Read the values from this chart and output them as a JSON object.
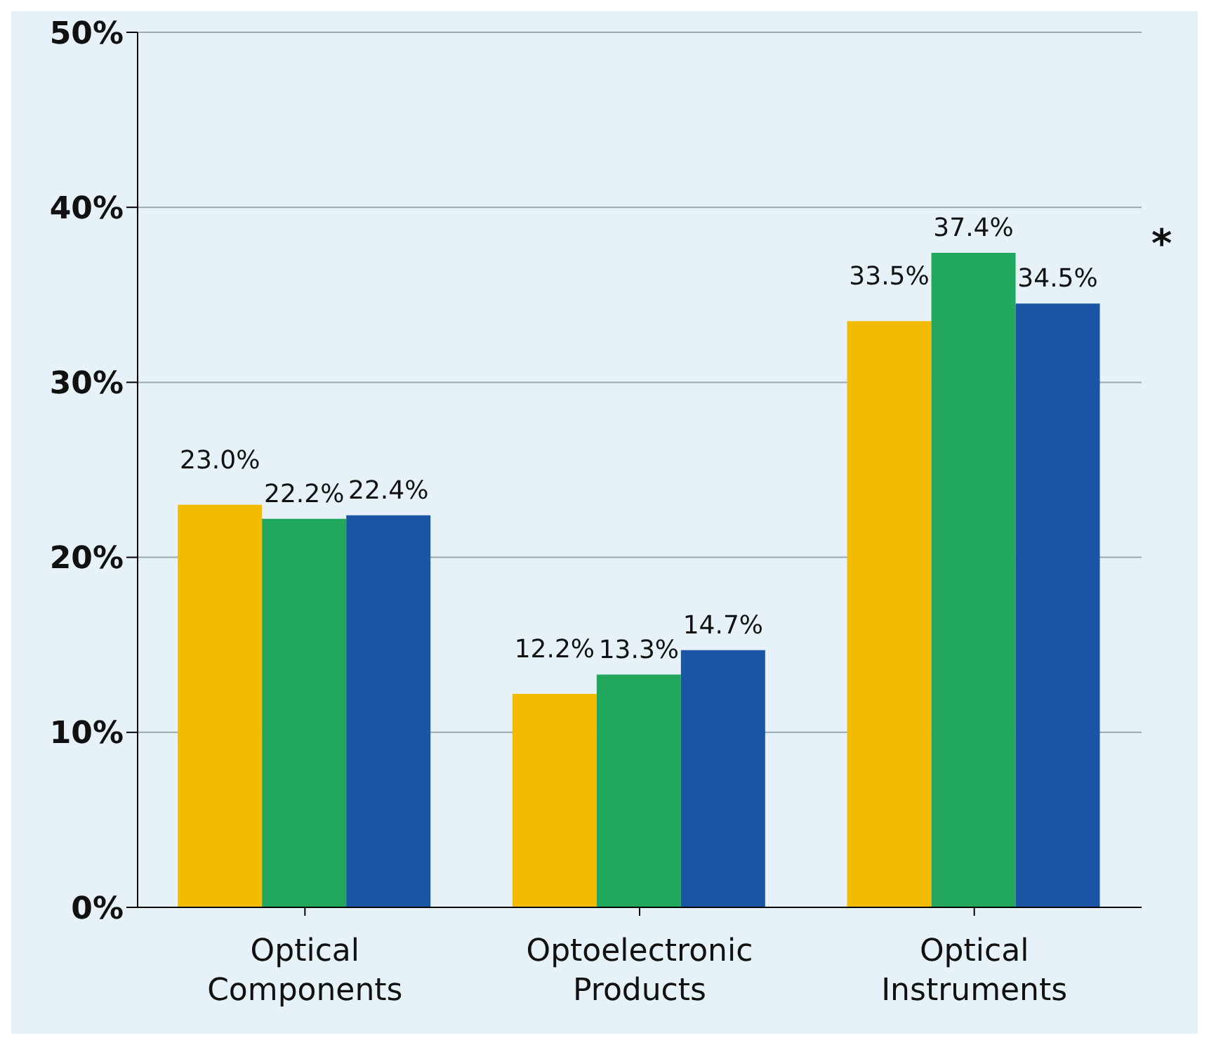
{
  "chart_data": {
    "type": "bar",
    "categories": [
      "Optical Components",
      "Optoelectronic Products",
      "Optical Instruments"
    ],
    "series": [
      {
        "color": "#f2bc00",
        "values": [
          23.0,
          12.2,
          33.5
        ],
        "value_labels": [
          "23.0%",
          "12.2%",
          "33.5%"
        ]
      },
      {
        "color": "#22a85c",
        "values": [
          22.2,
          13.3,
          37.4
        ],
        "value_labels": [
          "22.2%",
          "13.3%",
          "37.4%"
        ]
      },
      {
        "color": "#1a56a4",
        "values": [
          22.4,
          14.7,
          34.5
        ],
        "value_labels": [
          "22.4%",
          "14.7%",
          "34.5%"
        ]
      }
    ],
    "ylim": [
      0,
      50
    ],
    "yticks": [
      {
        "value": 0,
        "label": "0%"
      },
      {
        "value": 10,
        "label": "10%"
      },
      {
        "value": 20,
        "label": "20%"
      },
      {
        "value": 30,
        "label": "30%"
      },
      {
        "value": 40,
        "label": "40%"
      },
      {
        "value": 50,
        "label": "50%"
      }
    ],
    "grid": "y",
    "legend": false,
    "annotations": [
      "*"
    ]
  }
}
